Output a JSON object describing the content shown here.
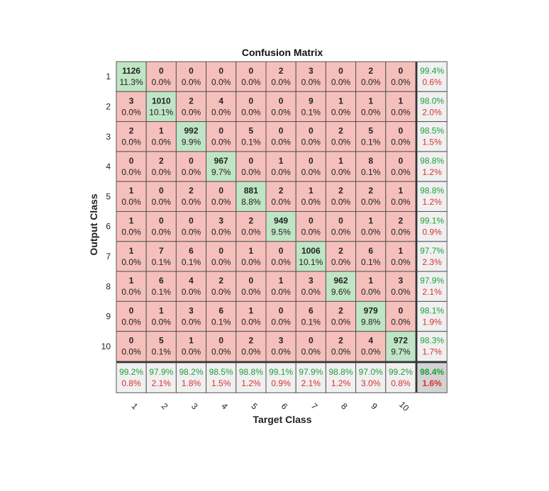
{
  "chart_data": {
    "type": "heatmap",
    "title": "Confusion Matrix",
    "xlabel": "Target Class",
    "ylabel": "Output Class",
    "classes": [
      "1",
      "2",
      "3",
      "4",
      "5",
      "6",
      "7",
      "8",
      "9",
      "10"
    ],
    "counts": [
      [
        1126,
        0,
        0,
        0,
        0,
        2,
        3,
        0,
        2,
        0
      ],
      [
        3,
        1010,
        2,
        4,
        0,
        0,
        9,
        1,
        1,
        1
      ],
      [
        2,
        1,
        992,
        0,
        5,
        0,
        0,
        2,
        5,
        0
      ],
      [
        0,
        2,
        0,
        967,
        0,
        1,
        0,
        1,
        8,
        0
      ],
      [
        1,
        0,
        2,
        0,
        881,
        2,
        1,
        2,
        2,
        1
      ],
      [
        1,
        0,
        0,
        3,
        2,
        949,
        0,
        0,
        1,
        2
      ],
      [
        1,
        7,
        6,
        0,
        1,
        0,
        1006,
        2,
        6,
        1
      ],
      [
        1,
        6,
        4,
        2,
        0,
        1,
        3,
        962,
        1,
        3
      ],
      [
        0,
        1,
        3,
        6,
        1,
        0,
        6,
        2,
        979,
        0
      ],
      [
        0,
        5,
        1,
        0,
        2,
        3,
        0,
        2,
        4,
        972
      ]
    ],
    "percents": [
      [
        "11.3%",
        "0.0%",
        "0.0%",
        "0.0%",
        "0.0%",
        "0.0%",
        "0.0%",
        "0.0%",
        "0.0%",
        "0.0%"
      ],
      [
        "0.0%",
        "10.1%",
        "0.0%",
        "0.0%",
        "0.0%",
        "0.0%",
        "0.1%",
        "0.0%",
        "0.0%",
        "0.0%"
      ],
      [
        "0.0%",
        "0.0%",
        "9.9%",
        "0.0%",
        "0.1%",
        "0.0%",
        "0.0%",
        "0.0%",
        "0.1%",
        "0.0%"
      ],
      [
        "0.0%",
        "0.0%",
        "0.0%",
        "9.7%",
        "0.0%",
        "0.0%",
        "0.0%",
        "0.0%",
        "0.1%",
        "0.0%"
      ],
      [
        "0.0%",
        "0.0%",
        "0.0%",
        "0.0%",
        "8.8%",
        "0.0%",
        "0.0%",
        "0.0%",
        "0.0%",
        "0.0%"
      ],
      [
        "0.0%",
        "0.0%",
        "0.0%",
        "0.0%",
        "0.0%",
        "9.5%",
        "0.0%",
        "0.0%",
        "0.0%",
        "0.0%"
      ],
      [
        "0.0%",
        "0.1%",
        "0.1%",
        "0.0%",
        "0.0%",
        "0.0%",
        "10.1%",
        "0.0%",
        "0.1%",
        "0.0%"
      ],
      [
        "0.0%",
        "0.1%",
        "0.0%",
        "0.0%",
        "0.0%",
        "0.0%",
        "0.0%",
        "9.6%",
        "0.0%",
        "0.0%"
      ],
      [
        "0.0%",
        "0.0%",
        "0.0%",
        "0.1%",
        "0.0%",
        "0.0%",
        "0.1%",
        "0.0%",
        "9.8%",
        "0.0%"
      ],
      [
        "0.0%",
        "0.1%",
        "0.0%",
        "0.0%",
        "0.0%",
        "0.0%",
        "0.0%",
        "0.0%",
        "0.0%",
        "9.7%"
      ]
    ],
    "row_summary": [
      [
        "99.4%",
        "0.6%"
      ],
      [
        "98.0%",
        "2.0%"
      ],
      [
        "98.5%",
        "1.5%"
      ],
      [
        "98.8%",
        "1.2%"
      ],
      [
        "98.8%",
        "1.2%"
      ],
      [
        "99.1%",
        "0.9%"
      ],
      [
        "97.7%",
        "2.3%"
      ],
      [
        "97.9%",
        "2.1%"
      ],
      [
        "98.1%",
        "1.9%"
      ],
      [
        "98.3%",
        "1.7%"
      ]
    ],
    "col_summary": [
      [
        "99.2%",
        "0.8%"
      ],
      [
        "97.9%",
        "2.1%"
      ],
      [
        "98.2%",
        "1.8%"
      ],
      [
        "98.5%",
        "1.5%"
      ],
      [
        "98.8%",
        "1.2%"
      ],
      [
        "99.1%",
        "0.9%"
      ],
      [
        "97.9%",
        "2.1%"
      ],
      [
        "98.8%",
        "1.2%"
      ],
      [
        "97.0%",
        "3.0%"
      ],
      [
        "99.2%",
        "0.8%"
      ]
    ],
    "overall": [
      "98.4%",
      "1.6%"
    ],
    "colors": {
      "correct": "#bfe5c5",
      "incorrect": "#f5c0bc",
      "summary": "#f0f0f0",
      "overall": "#d3d3d3",
      "good_text": "#1f9e3a",
      "bad_text": "#d93030"
    }
  }
}
